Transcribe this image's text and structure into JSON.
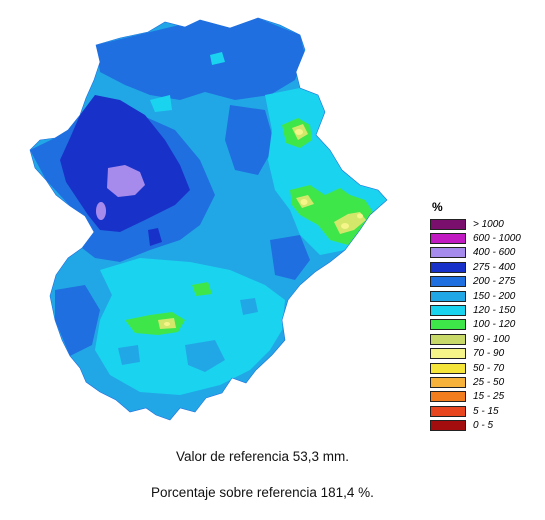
{
  "map": {
    "colors": {
      "background": "#ffffff",
      "band_150_200": "#22a7e6",
      "band_120_150": "#1ad4ef",
      "band_200_275": "#1f6fe0",
      "band_275_400": "#1832c9",
      "band_400_600": "#a78bec",
      "band_100_120": "#3ee64a",
      "band_90_100": "#d3e86a",
      "band_70_90": "#f6f58a"
    }
  },
  "legend": {
    "title": "%",
    "items": [
      {
        "label": "> 1000",
        "color": "#7a0f6e"
      },
      {
        "label": "600 - 1000",
        "color": "#c21ac2"
      },
      {
        "label": "400 - 600",
        "color": "#a78bec"
      },
      {
        "label": "275 - 400",
        "color": "#1832c9"
      },
      {
        "label": "200 - 275",
        "color": "#1f6fe0"
      },
      {
        "label": "150 - 200",
        "color": "#22a7e6"
      },
      {
        "label": "120 - 150",
        "color": "#1ad4ef"
      },
      {
        "label": "100 - 120",
        "color": "#3ee64a"
      },
      {
        "label": "90 - 100",
        "color": "#c8d96a"
      },
      {
        "label": "70 - 90",
        "color": "#f6f58a"
      },
      {
        "label": "50 - 70",
        "color": "#f5e43a"
      },
      {
        "label": "25 - 50",
        "color": "#f6b23a"
      },
      {
        "label": "15 - 25",
        "color": "#f27d1f"
      },
      {
        "label": "5 - 15",
        "color": "#e8461e"
      },
      {
        "label": "0 - 5",
        "color": "#a30d0d"
      }
    ]
  },
  "captions": {
    "reference": "Valor de referencia 53,3 mm.",
    "percentage": "Porcentaje sobre referencia 181,4 %."
  }
}
